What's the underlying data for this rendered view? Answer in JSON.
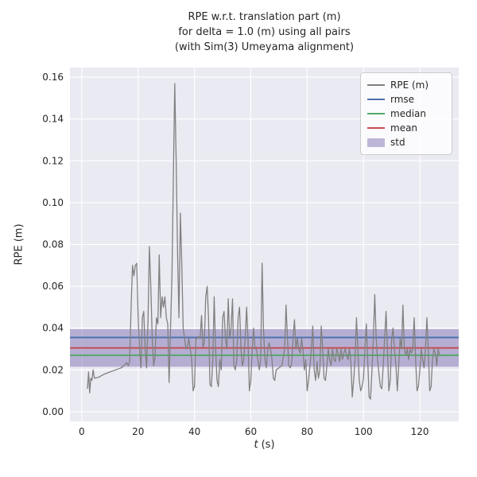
{
  "titles": [
    "RPE w.r.t. translation part (m)",
    "for delta = 1.0 (m) using all pairs",
    "(with Sim(3) Umeyama alignment)"
  ],
  "labels": {
    "ylabel": "RPE (m)",
    "xlabel_var": "t",
    "xlabel_unit": "(s)"
  },
  "legend": [
    {
      "label": "RPE (m)",
      "color": "#808080",
      "type": "line"
    },
    {
      "label": "rmse",
      "color": "#4C72B0",
      "type": "line"
    },
    {
      "label": "median",
      "color": "#55A868",
      "type": "line"
    },
    {
      "label": "mean",
      "color": "#C44E52",
      "type": "line"
    },
    {
      "label": "std",
      "color": "#8172B2",
      "type": "band"
    }
  ],
  "chart_data": {
    "type": "line",
    "title": "RPE w.r.t. translation part (m) for delta = 1.0 (m) using all pairs (with Sim(3) Umeyama alignment)",
    "xlabel": "t (s)",
    "ylabel": "RPE (m)",
    "xlim": [
      -4.2,
      133.8
    ],
    "ylim": [
      -0.0046,
      0.1646
    ],
    "xtick_values": [
      0,
      20,
      40,
      60,
      80,
      100,
      120
    ],
    "xtick_labels": [
      "0",
      "20",
      "40",
      "60",
      "80",
      "100",
      "120"
    ],
    "ytick_values": [
      0.0,
      0.02,
      0.04,
      0.06,
      0.08,
      0.1,
      0.12,
      0.14,
      0.16
    ],
    "ytick_labels": [
      "0.00",
      "0.02",
      "0.04",
      "0.06",
      "0.08",
      "0.10",
      "0.12",
      "0.14",
      "0.16"
    ],
    "grid": true,
    "legend_position": "upper right",
    "stats": {
      "rmse": 0.0355,
      "mean": 0.0305,
      "median": 0.027,
      "std": 0.009
    },
    "colors": {
      "rpe": "#808080",
      "rmse": "#4C72B0",
      "median": "#55A868",
      "mean": "#C44E52",
      "std_fill": "#8172B2",
      "std_opacity": 0.5,
      "plot_bg": "#EAEAF2",
      "grid": "#FFFFFF"
    },
    "series": [
      {
        "name": "RPE (m)",
        "points": [
          [
            2,
            0.011
          ],
          [
            2.4,
            0.019
          ],
          [
            2.8,
            0.009
          ],
          [
            3.2,
            0.016
          ],
          [
            3.6,
            0.015
          ],
          [
            4.0,
            0.02
          ],
          [
            4.5,
            0.016
          ],
          [
            6,
            0.0165
          ],
          [
            8,
            0.018
          ],
          [
            10,
            0.019
          ],
          [
            12,
            0.02
          ],
          [
            14,
            0.021
          ],
          [
            15,
            0.022
          ],
          [
            16,
            0.0235
          ],
          [
            16.5,
            0.022
          ],
          [
            17,
            0.024
          ],
          [
            17.5,
            0.05
          ],
          [
            18,
            0.07
          ],
          [
            18.5,
            0.065
          ],
          [
            19,
            0.07
          ],
          [
            19.5,
            0.071
          ],
          [
            20,
            0.045
          ],
          [
            20.5,
            0.03
          ],
          [
            21,
            0.021
          ],
          [
            21.5,
            0.045
          ],
          [
            22,
            0.048
          ],
          [
            22.5,
            0.03
          ],
          [
            23,
            0.021
          ],
          [
            23.5,
            0.044
          ],
          [
            24,
            0.079
          ],
          [
            24.5,
            0.06
          ],
          [
            25,
            0.035
          ],
          [
            25.5,
            0.022
          ],
          [
            26,
            0.026
          ],
          [
            26.5,
            0.045
          ],
          [
            27,
            0.042
          ],
          [
            27.5,
            0.075
          ],
          [
            28,
            0.045
          ],
          [
            28.5,
            0.055
          ],
          [
            29,
            0.05
          ],
          [
            29.5,
            0.055
          ],
          [
            30,
            0.045
          ],
          [
            30.5,
            0.042
          ],
          [
            31,
            0.014
          ],
          [
            31.5,
            0.04
          ],
          [
            32,
            0.065
          ],
          [
            32.5,
            0.11
          ],
          [
            33,
            0.157
          ],
          [
            33.5,
            0.12
          ],
          [
            34,
            0.075
          ],
          [
            34.5,
            0.045
          ],
          [
            35,
            0.095
          ],
          [
            35.5,
            0.07
          ],
          [
            36,
            0.04
          ],
          [
            36.5,
            0.035
          ],
          [
            37,
            0.03
          ],
          [
            37.5,
            0.031
          ],
          [
            38,
            0.035
          ],
          [
            38.5,
            0.03
          ],
          [
            39,
            0.025
          ],
          [
            39.5,
            0.01
          ],
          [
            40,
            0.012
          ],
          [
            40.5,
            0.035
          ],
          [
            41,
            0.035
          ],
          [
            41.5,
            0.036
          ],
          [
            42,
            0.035
          ],
          [
            42.5,
            0.046
          ],
          [
            43,
            0.031
          ],
          [
            43.5,
            0.033
          ],
          [
            44,
            0.055
          ],
          [
            44.5,
            0.06
          ],
          [
            45,
            0.045
          ],
          [
            45.5,
            0.013
          ],
          [
            46,
            0.012
          ],
          [
            46.5,
            0.025
          ],
          [
            47,
            0.055
          ],
          [
            47.5,
            0.03
          ],
          [
            48,
            0.015
          ],
          [
            48.5,
            0.012
          ],
          [
            49,
            0.025
          ],
          [
            49.5,
            0.02
          ],
          [
            50,
            0.045
          ],
          [
            50.5,
            0.048
          ],
          [
            51,
            0.035
          ],
          [
            51.5,
            0.03
          ],
          [
            52,
            0.054
          ],
          [
            52.5,
            0.035
          ],
          [
            53,
            0.04
          ],
          [
            53.5,
            0.054
          ],
          [
            54,
            0.022
          ],
          [
            54.5,
            0.02
          ],
          [
            55,
            0.025
          ],
          [
            55.5,
            0.045
          ],
          [
            56,
            0.05
          ],
          [
            56.5,
            0.03
          ],
          [
            57,
            0.022
          ],
          [
            57.5,
            0.025
          ],
          [
            58,
            0.035
          ],
          [
            58.5,
            0.05
          ],
          [
            59,
            0.035
          ],
          [
            59.5,
            0.01
          ],
          [
            60,
            0.015
          ],
          [
            60.5,
            0.03
          ],
          [
            61,
            0.04
          ],
          [
            61.5,
            0.03
          ],
          [
            62,
            0.03
          ],
          [
            62.5,
            0.025
          ],
          [
            63,
            0.02
          ],
          [
            63.5,
            0.025
          ],
          [
            64,
            0.071
          ],
          [
            64.5,
            0.04
          ],
          [
            65,
            0.025
          ],
          [
            65.5,
            0.021
          ],
          [
            66,
            0.03
          ],
          [
            66.5,
            0.033
          ],
          [
            67,
            0.03
          ],
          [
            67.5,
            0.025
          ],
          [
            68,
            0.016
          ],
          [
            68.5,
            0.015
          ],
          [
            69,
            0.02
          ],
          [
            70,
            0.021
          ],
          [
            71,
            0.022
          ],
          [
            72,
            0.03
          ],
          [
            72.5,
            0.051
          ],
          [
            73,
            0.035
          ],
          [
            73.5,
            0.022
          ],
          [
            74,
            0.021
          ],
          [
            74.5,
            0.023
          ],
          [
            75,
            0.035
          ],
          [
            75.5,
            0.044
          ],
          [
            76,
            0.03
          ],
          [
            76.5,
            0.035
          ],
          [
            77,
            0.03
          ],
          [
            77.5,
            0.028
          ],
          [
            78,
            0.035
          ],
          [
            78.5,
            0.03
          ],
          [
            79,
            0.02
          ],
          [
            79.5,
            0.025
          ],
          [
            80,
            0.01
          ],
          [
            80.5,
            0.015
          ],
          [
            81,
            0.022
          ],
          [
            81.5,
            0.03
          ],
          [
            82,
            0.041
          ],
          [
            82.5,
            0.02
          ],
          [
            83,
            0.015
          ],
          [
            83.5,
            0.024
          ],
          [
            84,
            0.016
          ],
          [
            84.5,
            0.02
          ],
          [
            85,
            0.041
          ],
          [
            85.5,
            0.03
          ],
          [
            86,
            0.016
          ],
          [
            86.5,
            0.015
          ],
          [
            87,
            0.022
          ],
          [
            87.5,
            0.03
          ],
          [
            88,
            0.025
          ],
          [
            88.5,
            0.022
          ],
          [
            89,
            0.03
          ],
          [
            89.5,
            0.025
          ],
          [
            90,
            0.024
          ],
          [
            90.5,
            0.03
          ],
          [
            91,
            0.028
          ],
          [
            91.5,
            0.024
          ],
          [
            92,
            0.03
          ],
          [
            92.5,
            0.025
          ],
          [
            93,
            0.028
          ],
          [
            93.5,
            0.03
          ],
          [
            94,
            0.027
          ],
          [
            94.5,
            0.025
          ],
          [
            95,
            0.03
          ],
          [
            95.5,
            0.024
          ],
          [
            96,
            0.007
          ],
          [
            96.5,
            0.015
          ],
          [
            97,
            0.025
          ],
          [
            97.5,
            0.045
          ],
          [
            98,
            0.03
          ],
          [
            98.5,
            0.015
          ],
          [
            99,
            0.01
          ],
          [
            99.5,
            0.012
          ],
          [
            100,
            0.016
          ],
          [
            100.5,
            0.03
          ],
          [
            101,
            0.042
          ],
          [
            101.5,
            0.025
          ],
          [
            102,
            0.007
          ],
          [
            102.5,
            0.006
          ],
          [
            103,
            0.02
          ],
          [
            103.5,
            0.035
          ],
          [
            104,
            0.056
          ],
          [
            104.5,
            0.035
          ],
          [
            105,
            0.025
          ],
          [
            105.5,
            0.018
          ],
          [
            106,
            0.012
          ],
          [
            106.5,
            0.011
          ],
          [
            107,
            0.022
          ],
          [
            107.5,
            0.035
          ],
          [
            108,
            0.048
          ],
          [
            108.5,
            0.03
          ],
          [
            109,
            0.01
          ],
          [
            109.5,
            0.015
          ],
          [
            110,
            0.035
          ],
          [
            110.5,
            0.04
          ],
          [
            111,
            0.03
          ],
          [
            111.5,
            0.022
          ],
          [
            112,
            0.01
          ],
          [
            112.5,
            0.022
          ],
          [
            113,
            0.035
          ],
          [
            113.5,
            0.03
          ],
          [
            114,
            0.051
          ],
          [
            114.5,
            0.03
          ],
          [
            115,
            0.027
          ],
          [
            115.5,
            0.03
          ],
          [
            116,
            0.025
          ],
          [
            116.5,
            0.03
          ],
          [
            117,
            0.028
          ],
          [
            117.5,
            0.03
          ],
          [
            118,
            0.045
          ],
          [
            118.5,
            0.025
          ],
          [
            119,
            0.01
          ],
          [
            119.5,
            0.012
          ],
          [
            120,
            0.02
          ],
          [
            120.5,
            0.03
          ],
          [
            121,
            0.025
          ],
          [
            121.5,
            0.021
          ],
          [
            122,
            0.03
          ],
          [
            122.5,
            0.045
          ],
          [
            123,
            0.03
          ],
          [
            123.5,
            0.01
          ],
          [
            124,
            0.012
          ],
          [
            124.5,
            0.025
          ],
          [
            125,
            0.03
          ],
          [
            125.5,
            0.028
          ],
          [
            126,
            0.022
          ],
          [
            126.5,
            0.03
          ],
          [
            127,
            0.027
          ]
        ]
      }
    ]
  }
}
